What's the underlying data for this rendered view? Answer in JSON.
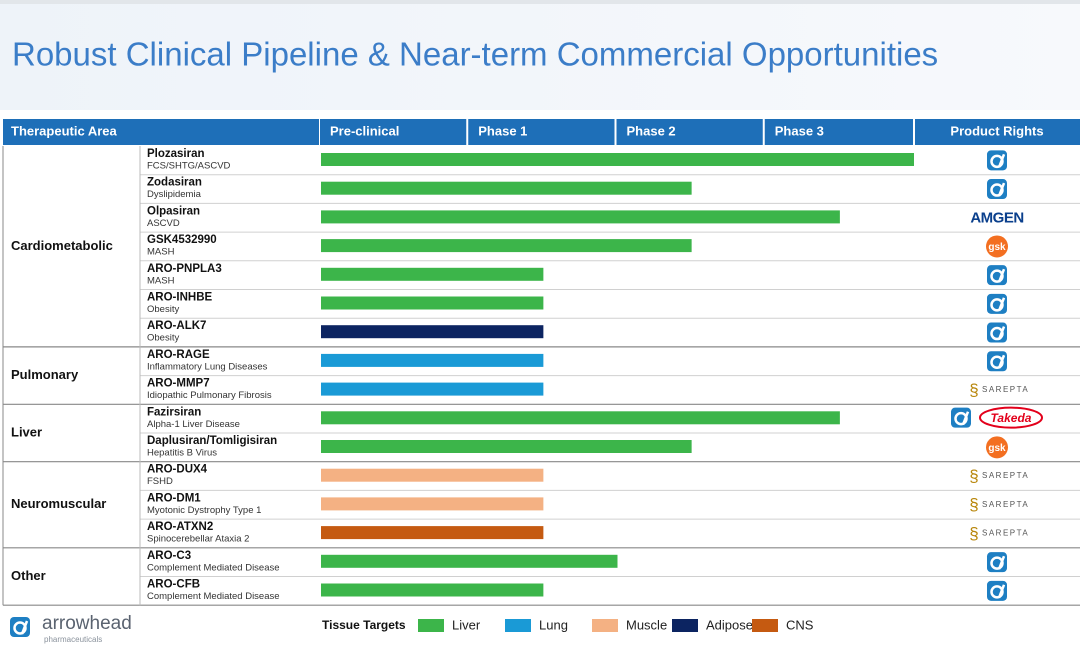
{
  "title": "Robust Clinical Pipeline & Near-term Commercial Opportunities",
  "header": {
    "area": "Therapeutic Area",
    "phases": [
      "Pre-clinical",
      "Phase 1",
      "Phase 2",
      "Phase 3"
    ],
    "rights": "Product Rights"
  },
  "xlim": [
    0,
    4
  ],
  "groups": [
    {
      "name": "Cardiometabolic",
      "programs": [
        {
          "name": "Plozasiran",
          "indication": "FCS/SHTG/ASCVD",
          "value": 4,
          "color": "#3cb54a",
          "arrowhead": true
        },
        {
          "name": "Zodasiran",
          "indication": "Dyslipidemia",
          "value": 2.5,
          "color": "#3cb54a",
          "arrowhead": true
        },
        {
          "name": "Olpasiran",
          "indication": "ASCVD",
          "value": 3.5,
          "color": "#3cb54a",
          "arrowhead": false,
          "partner": "AMGEN"
        },
        {
          "name": "GSK4532990",
          "indication": "MASH",
          "value": 2.5,
          "color": "#3cb54a",
          "arrowhead": false,
          "partner": "gsk"
        },
        {
          "name": "ARO-PNPLA3",
          "indication": "MASH",
          "value": 1.5,
          "color": "#3cb54a",
          "arrowhead": true
        },
        {
          "name": "ARO-INHBE",
          "indication": "Obesity",
          "value": 1.5,
          "color": "#3cb54a",
          "arrowhead": true
        },
        {
          "name": "ARO-ALK7",
          "indication": "Obesity",
          "value": 1.5,
          "color": "#0c2461",
          "arrowhead": true
        }
      ]
    },
    {
      "name": "Pulmonary",
      "programs": [
        {
          "name": "ARO-RAGE",
          "indication": "Inflammatory Lung Diseases",
          "value": 1.5,
          "color": "#1a9ad6",
          "arrowhead": true
        },
        {
          "name": "ARO-MMP7",
          "indication": "Idiopathic Pulmonary Fibrosis",
          "value": 1.5,
          "color": "#1a9ad6",
          "arrowhead": false,
          "partner": "SAREPTA"
        }
      ]
    },
    {
      "name": "Liver",
      "programs": [
        {
          "name": "Fazirsiran",
          "indication": "Alpha-1 Liver Disease",
          "value": 3.5,
          "color": "#3cb54a",
          "arrowhead": true,
          "partner": "Takeda"
        },
        {
          "name": "Daplusiran/Tomligisiran",
          "indication": "Hepatitis B Virus",
          "value": 2.5,
          "color": "#3cb54a",
          "arrowhead": false,
          "partner": "gsk"
        }
      ]
    },
    {
      "name": "Neuromuscular",
      "programs": [
        {
          "name": "ARO-DUX4",
          "indication": "FSHD",
          "value": 1.5,
          "color": "#f4b183",
          "arrowhead": false,
          "partner": "SAREPTA"
        },
        {
          "name": "ARO-DM1",
          "indication": "Myotonic Dystrophy Type 1",
          "value": 1.5,
          "color": "#f4b183",
          "arrowhead": false,
          "partner": "SAREPTA"
        },
        {
          "name": "ARO-ATXN2",
          "indication": "Spinocerebellar Ataxia 2",
          "value": 1.5,
          "color": "#c55a11",
          "arrowhead": false,
          "partner": "SAREPTA"
        }
      ]
    },
    {
      "name": "Other",
      "programs": [
        {
          "name": "ARO-C3",
          "indication": "Complement Mediated Disease",
          "value": 2,
          "color": "#3cb54a",
          "arrowhead": true
        },
        {
          "name": "ARO-CFB",
          "indication": "Complement Mediated Disease",
          "value": 1.5,
          "color": "#3cb54a",
          "arrowhead": true
        }
      ]
    }
  ],
  "legend": {
    "title": "Tissue Targets",
    "items": [
      {
        "name": "Liver",
        "color": "#3cb54a"
      },
      {
        "name": "Lung",
        "color": "#1a9ad6"
      },
      {
        "name": "Muscle",
        "color": "#f4b183"
      },
      {
        "name": "Adipose",
        "color": "#0c2461"
      },
      {
        "name": "CNS",
        "color": "#c55a11"
      }
    ]
  },
  "logo": {
    "name": "arrowhead",
    "sub": "pharmaceuticals"
  }
}
